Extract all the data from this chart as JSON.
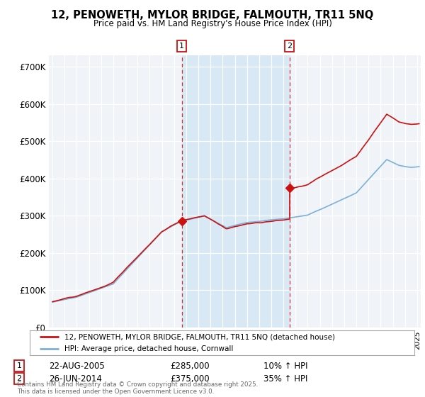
{
  "title": "12, PENOWETH, MYLOR BRIDGE, FALMOUTH, TR11 5NQ",
  "subtitle": "Price paid vs. HM Land Registry's House Price Index (HPI)",
  "ylim": [
    0,
    730000
  ],
  "yticks": [
    0,
    100000,
    200000,
    300000,
    400000,
    500000,
    600000,
    700000
  ],
  "ytick_labels": [
    "£0",
    "£100K",
    "£200K",
    "£300K",
    "£400K",
    "£500K",
    "£600K",
    "£700K"
  ],
  "hpi_color": "#7db0d5",
  "price_color": "#cc1111",
  "shade_color": "#d8e8f5",
  "transaction1": {
    "year": 2005.64,
    "date": "22-AUG-2005",
    "price": 285000,
    "pct": "10%",
    "label": "1"
  },
  "transaction2": {
    "year": 2014.49,
    "date": "26-JUN-2014",
    "price": 375000,
    "pct": "35%",
    "label": "2"
  },
  "legend_label1": "12, PENOWETH, MYLOR BRIDGE, FALMOUTH, TR11 5NQ (detached house)",
  "legend_label2": "HPI: Average price, detached house, Cornwall",
  "footer": "Contains HM Land Registry data © Crown copyright and database right 2025.\nThis data is licensed under the Open Government Licence v3.0.",
  "background_color": "#f7f7f7",
  "plot_bg_color": "#f0f4f8",
  "grid_color": "#ffffff",
  "xlim_start": 1995.0,
  "xlim_end": 2025.3
}
